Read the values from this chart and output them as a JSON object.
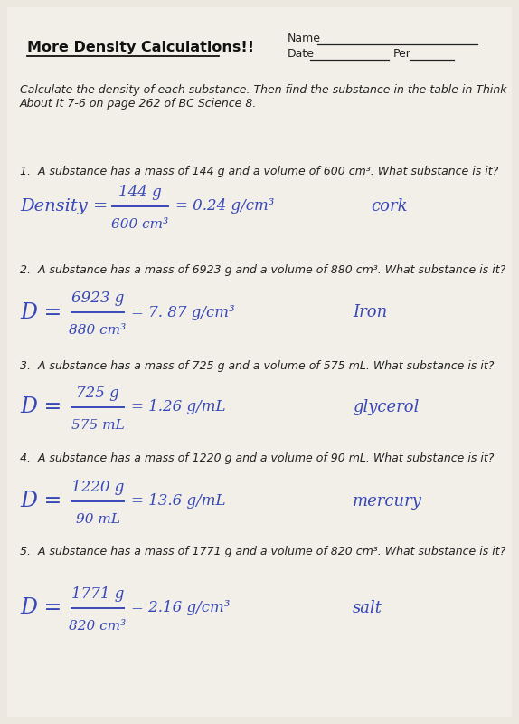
{
  "bg_color": "#ede8df",
  "paper_color": "#f2efe8",
  "title": "More Density Calculations!!",
  "instructions_line1": "Calculate the density of each substance. Then find the substance in the table in Think",
  "instructions_line2": "About It 7-6 on page 262 of BC Science 8.",
  "questions": [
    "1.  A substance has a mass of 144 g and a volume of 600 cm³. What substance is it?",
    "2.  A substance has a mass of 6923 g and a volume of 880 cm³. What substance is it?",
    "3.  A substance has a mass of 725 g and a volume of 575 mL. What substance is it?",
    "4.  A substance has a mass of 1220 g and a volume of 90 mL. What substance is it?",
    "5.  A substance has a mass of 1771 g and a volume of 820 cm³. What substance is it?"
  ],
  "answers": [
    {
      "lhs": "Density =",
      "lhs_long": true,
      "numerator": "144 g",
      "denominator": "600 cm³",
      "rhs": "= 0.24 g/cm³",
      "substance": "cork"
    },
    {
      "lhs": "D =",
      "lhs_long": false,
      "numerator": "6923 g",
      "denominator": "880 cm³",
      "rhs": "= 7. 87 g/cm³",
      "substance": "Iron"
    },
    {
      "lhs": "D =",
      "lhs_long": false,
      "numerator": "725 g",
      "denominator": "575 mL",
      "rhs": "= 1.26 g/mL",
      "substance": "glycerol"
    },
    {
      "lhs": "D =",
      "lhs_long": false,
      "numerator": "1220 g",
      "denominator": "90 mL",
      "rhs": "= 13.6 g/mL",
      "substance": "mercury"
    },
    {
      "lhs": "D =",
      "lhs_long": false,
      "numerator": "1771 g",
      "denominator": "820 cm³",
      "rhs": "= 2.16 g/cm³",
      "substance": "salt"
    }
  ],
  "handwriting_color": "#3848b8",
  "print_color": "#222222",
  "title_color": "#111111",
  "q_y_positions": [
    193,
    302,
    408,
    510,
    613
  ],
  "a_y_positions": [
    228,
    345,
    450,
    554,
    672
  ]
}
